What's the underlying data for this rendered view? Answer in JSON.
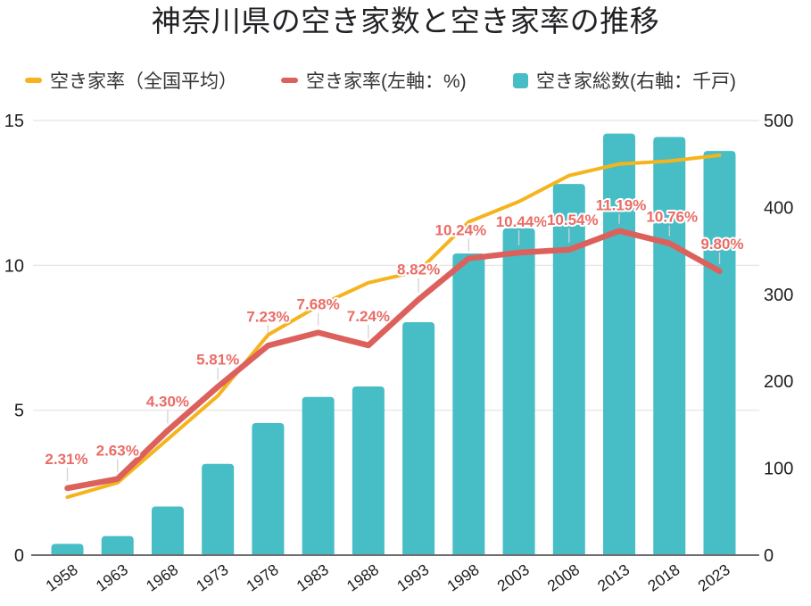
{
  "title": "神奈川県の空き家数と空き家率の推移",
  "legend": {
    "items": [
      {
        "label": "空き家率（全国平均）",
        "swatch": "yellow-dash"
      },
      {
        "label": "空き家率(左軸：%)",
        "swatch": "red-dash"
      },
      {
        "label": "空き家総数(右軸：千戸)",
        "swatch": "teal-square"
      }
    ]
  },
  "colors": {
    "national_line": "#F5B41D",
    "kanagawa_line": "#DC615C",
    "bars": "#47BDC6",
    "data_label": "#EA6C66",
    "grid": "#E3E3E3",
    "axis": "#6E6E6E",
    "tick_text": "#1F1F1F",
    "leader_line": "#D2D2D2"
  },
  "chart_data": {
    "type": "combo",
    "title": "神奈川県の空き家数と空き家率の推移",
    "categories": [
      "1958",
      "1963",
      "1968",
      "1973",
      "1978",
      "1983",
      "1988",
      "1993",
      "1998",
      "2003",
      "2008",
      "2013",
      "2018",
      "2023"
    ],
    "series": [
      {
        "name": "空き家率（全国平均）",
        "type": "line",
        "axis": "left",
        "color_key": "national_line",
        "values": [
          2.0,
          2.5,
          4.0,
          5.5,
          7.6,
          8.6,
          9.4,
          9.8,
          11.5,
          12.2,
          13.1,
          13.5,
          13.6,
          13.8
        ]
      },
      {
        "name": "空き家率(左軸：%)",
        "type": "line",
        "axis": "left",
        "color_key": "kanagawa_line",
        "values": [
          2.31,
          2.63,
          4.3,
          5.81,
          7.23,
          7.68,
          7.24,
          8.82,
          10.24,
          10.44,
          10.54,
          11.19,
          10.76,
          9.8
        ],
        "data_labels": [
          "2.31%",
          "2.63%",
          "4.30%",
          "5.81%",
          "7.23%",
          "7.68%",
          "7.24%",
          "8.82%",
          "10.24%",
          "10.44%",
          "10.54%",
          "11.19%",
          "10.76%",
          "9.80%"
        ]
      },
      {
        "name": "空き家総数(右軸：千戸)",
        "type": "bar",
        "axis": "right",
        "color_key": "bars",
        "values": [
          13,
          22,
          56,
          105,
          152,
          182,
          194,
          268,
          347,
          376,
          427,
          485,
          481,
          465
        ]
      }
    ],
    "left_axis": {
      "ticks": [
        0,
        5,
        10,
        15
      ],
      "range": [
        0,
        15
      ],
      "unit": "%"
    },
    "right_axis": {
      "ticks": [
        0,
        100,
        200,
        300,
        400,
        500
      ],
      "range": [
        0,
        500
      ],
      "unit": "千戸"
    },
    "grid": true,
    "legend_position": "top"
  }
}
